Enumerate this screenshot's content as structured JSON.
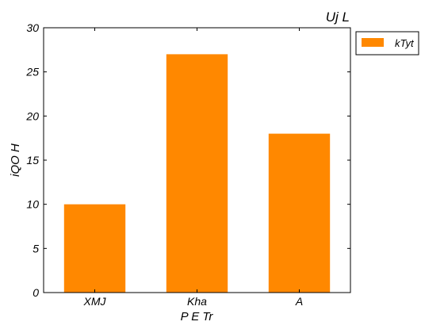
{
  "chart_data": {
    "type": "bar",
    "title": "Uj  L",
    "xlabel": "P E Tr",
    "ylabel": "iQO H",
    "categories": [
      "XMJ",
      "Kha",
      "A"
    ],
    "series": [
      {
        "name": "kTyt",
        "values": [
          10,
          27,
          18
        ],
        "color": "#ff8800"
      }
    ],
    "ylim": [
      0,
      30
    ],
    "yticks": [
      0,
      5,
      10,
      15,
      20,
      25,
      30
    ],
    "grid": false,
    "legend_position": "outside-top-right"
  }
}
